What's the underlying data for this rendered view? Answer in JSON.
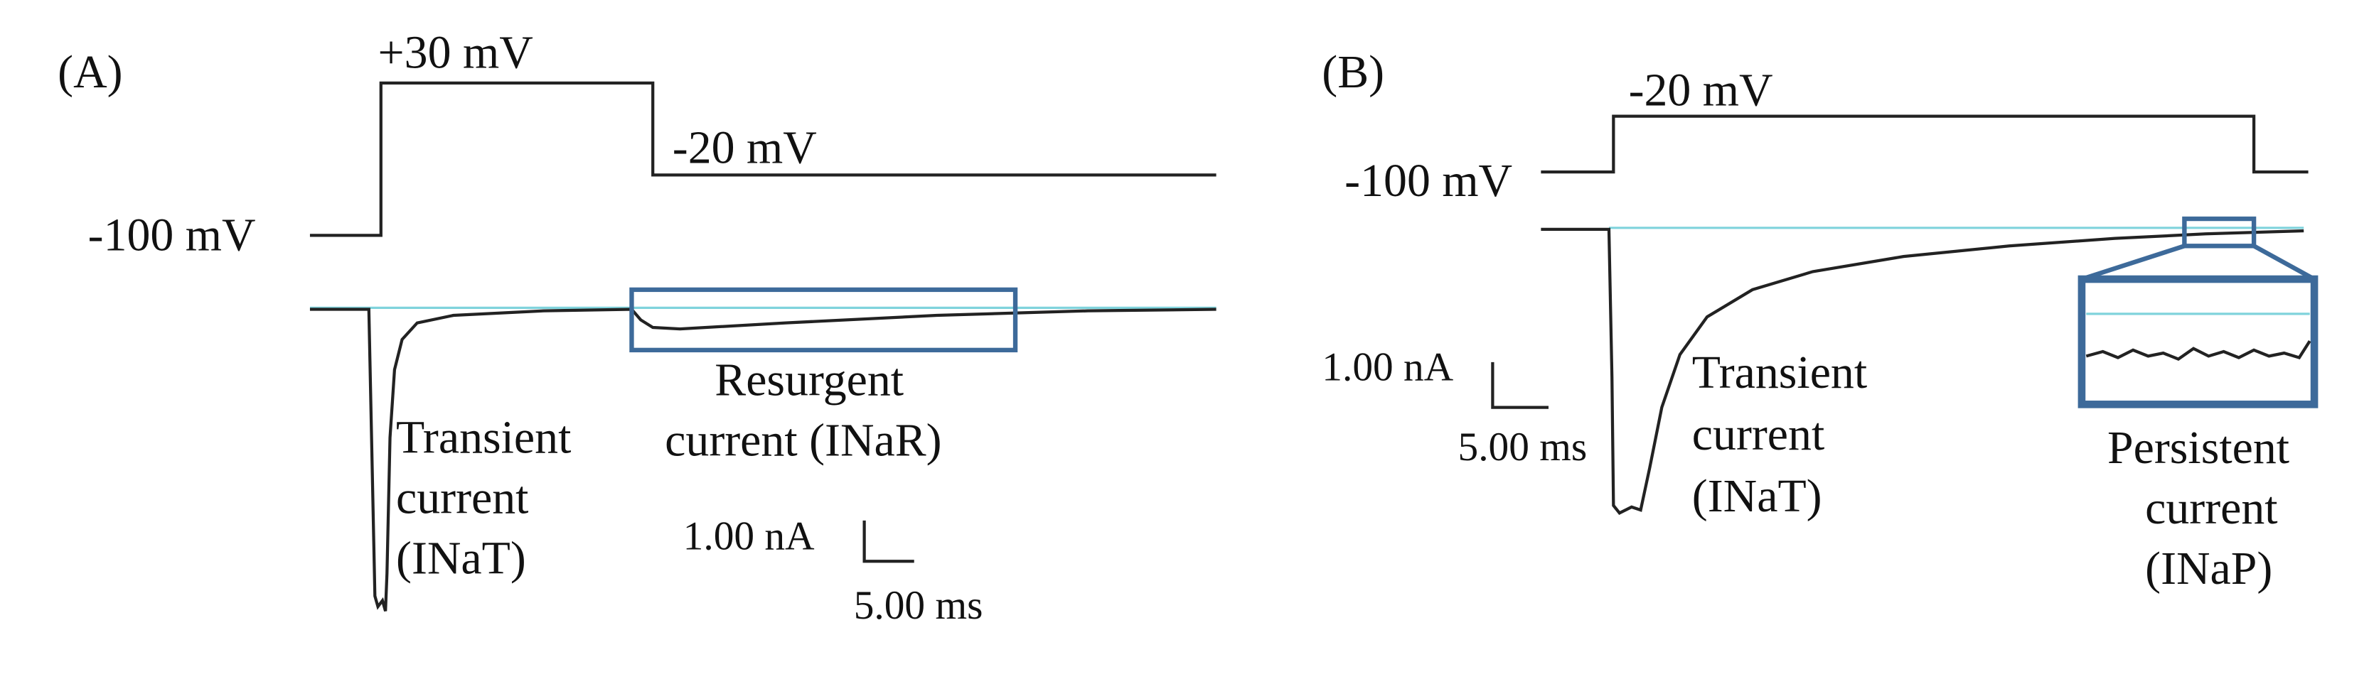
{
  "panels": [
    {
      "label": "(A)",
      "voltage_labels": [
        "+30 mV",
        "-20 mV",
        "-100 mV"
      ],
      "transient_label": [
        "Transient",
        "current",
        "(INaT)"
      ],
      "other_label": [
        "Resurgent",
        "current (INaR)"
      ],
      "scale_current": "1.00 nA",
      "scale_time": "5.00 ms"
    },
    {
      "label": "(B)",
      "voltage_labels": [
        "-20 mV",
        "-100 mV"
      ],
      "transient_label": [
        "Transient",
        "current",
        "(INaT)"
      ],
      "other_label": [
        "Persistent",
        "current",
        "(INaP)"
      ],
      "scale_current": "1.00 nA",
      "scale_time": "5.00 ms"
    }
  ]
}
